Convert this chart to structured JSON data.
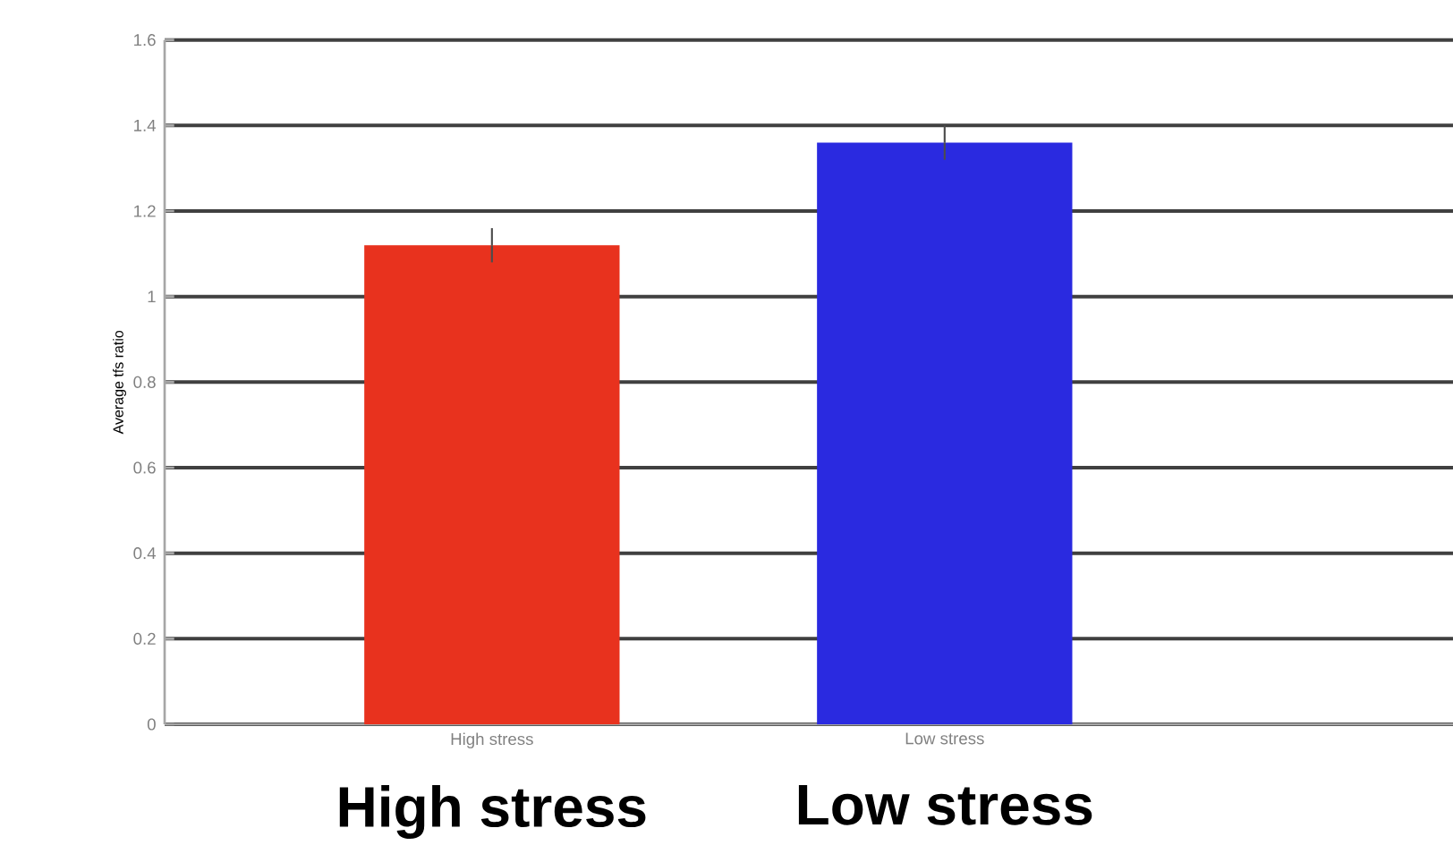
{
  "chart_data": {
    "type": "bar",
    "ylabel": "Average tfs ratio",
    "categories": [
      "High stress",
      "Low stress"
    ],
    "values": [
      1.12,
      1.36
    ],
    "errors": [
      0.04,
      0.04
    ],
    "colors": [
      "#e8321e",
      "#2a2ae0"
    ],
    "ylim": [
      0,
      1.6
    ],
    "yticks": [
      0,
      0.2,
      0.4,
      0.6,
      0.8,
      1,
      1.2,
      1.4,
      1.6
    ],
    "grid": "y",
    "annotations": [
      "High stress",
      "Low stress"
    ]
  }
}
